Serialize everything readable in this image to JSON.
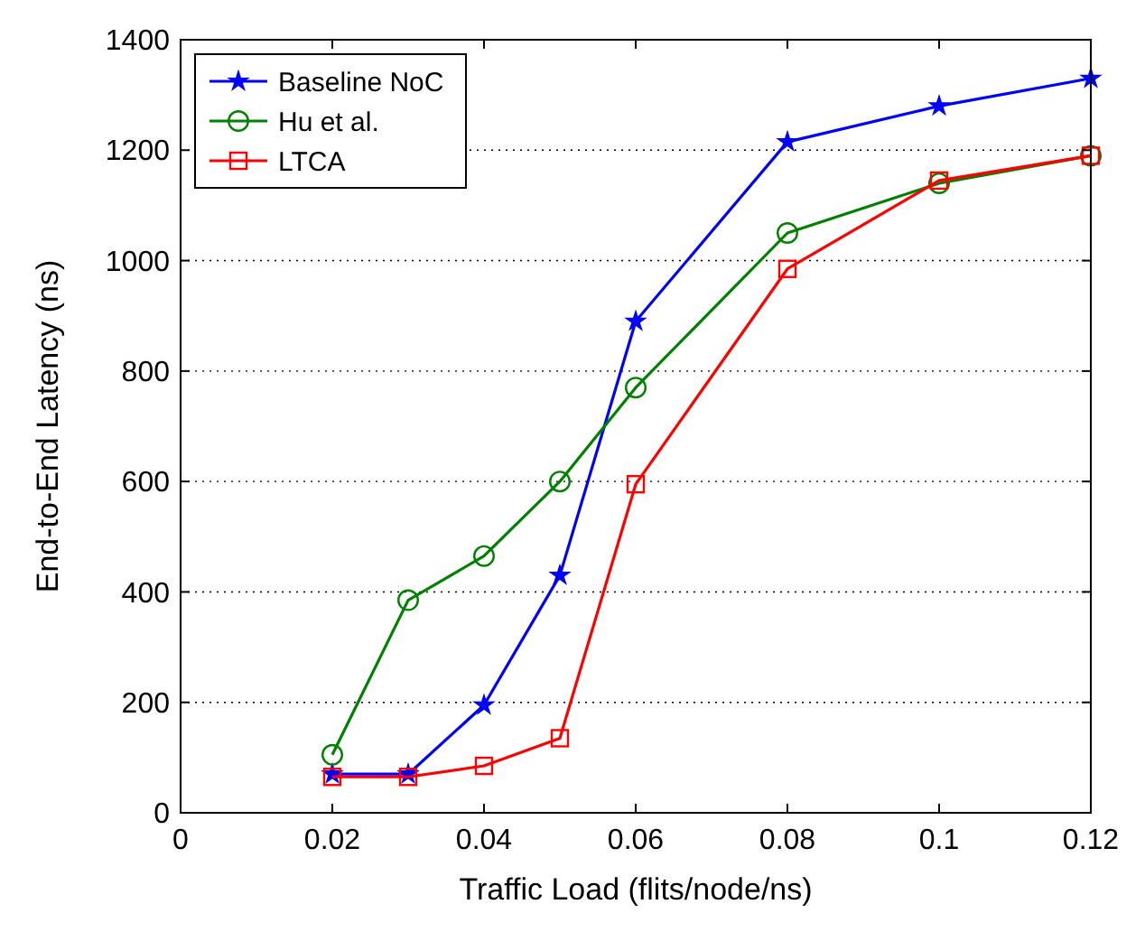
{
  "chart_data": {
    "type": "line",
    "xlabel": "Traffic Load (flits/node/ns)",
    "ylabel": "End-to-End Latency (ns)",
    "x": [
      0.02,
      0.03,
      0.04,
      0.05,
      0.06,
      0.08,
      0.1,
      0.12
    ],
    "xlim": [
      0,
      0.12
    ],
    "xticks": [
      0,
      0.02,
      0.04,
      0.06,
      0.08,
      0.1,
      0.12
    ],
    "ylim": [
      0,
      1400
    ],
    "yticks": [
      0,
      200,
      400,
      600,
      800,
      1000,
      1200,
      1400
    ],
    "grid": "y",
    "legend": "top left",
    "series": [
      {
        "name": "Baseline NoC",
        "color": "#0000ff",
        "marker": "star",
        "values": [
          70,
          70,
          195,
          430,
          890,
          1215,
          1280,
          1330
        ]
      },
      {
        "name": "Hu et al.",
        "color": "#008000",
        "marker": "circle",
        "values": [
          105,
          385,
          465,
          600,
          770,
          1050,
          1140,
          1190
        ]
      },
      {
        "name": "LTCA",
        "color": "#ff0000",
        "marker": "square",
        "values": [
          65,
          65,
          85,
          135,
          595,
          985,
          1145,
          1190
        ]
      }
    ]
  }
}
